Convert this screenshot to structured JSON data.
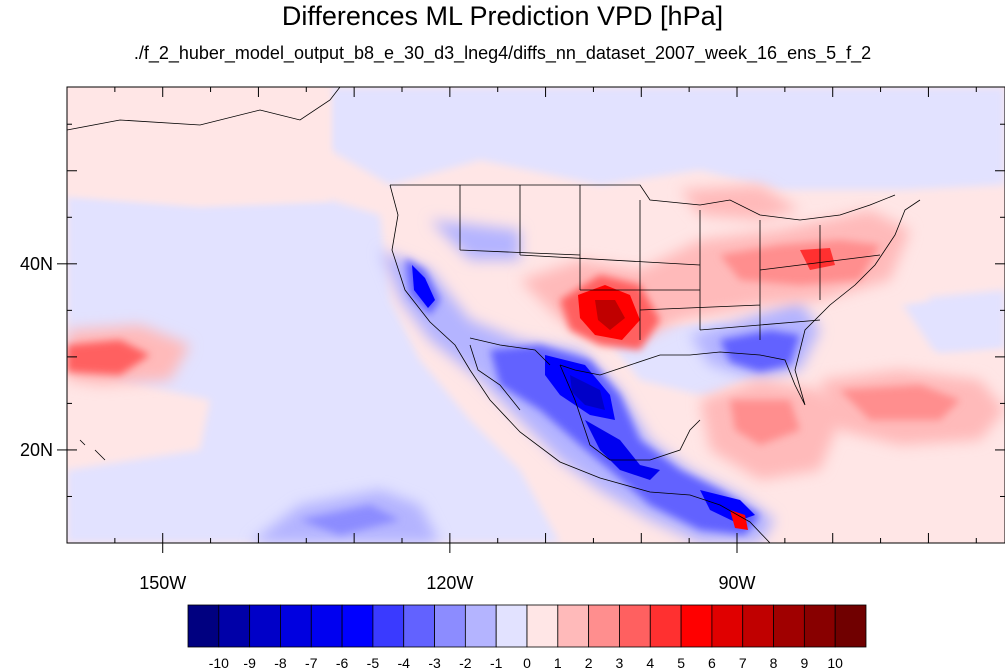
{
  "title": "Differences ML Prediction VPD [hPa]",
  "subtitle": "./f_2_huber_model_output_b8_e_30_d3_lneg4/diffs_nn_dataset_2007_week_16_ens_5_f_2",
  "map": {
    "lon_range": [
      -160,
      -62
    ],
    "lat_range": [
      10,
      59
    ],
    "projection": "cylindrical equidistant",
    "x_tick_labels": [
      {
        "lon": -150,
        "label": "150W"
      },
      {
        "lon": -120,
        "label": "120W"
      },
      {
        "lon": -90,
        "label": "90W"
      }
    ],
    "y_tick_labels": [
      {
        "lat": 40,
        "label": "40N"
      },
      {
        "lat": 20,
        "label": "20N"
      }
    ],
    "field": "VPD difference (hPa)",
    "features": [
      {
        "name": "sierra-nevada-negative",
        "value": -6,
        "lon": -119.5,
        "lat": 37
      },
      {
        "name": "mexico-plateau-negative",
        "value": -8,
        "lon": -103,
        "lat": 25
      },
      {
        "name": "southern-mexico-negative",
        "value": -7,
        "lon": -97,
        "lat": 17.5
      },
      {
        "name": "southeast-us-negative",
        "value": -4,
        "lon": -84,
        "lat": 31
      },
      {
        "name": "southern-plains-positive",
        "value": 7,
        "lon": -102,
        "lat": 35
      },
      {
        "name": "ohio-valley-positive",
        "value": 4,
        "lon": -82,
        "lat": 39
      },
      {
        "name": "caribbean-positive",
        "value": 3,
        "lon": -84,
        "lat": 22
      },
      {
        "name": "atlantic-positive",
        "value": 3,
        "lon": -65,
        "lat": 25
      },
      {
        "name": "pacific-west-positive",
        "value": 4,
        "lon": -156,
        "lat": 29
      },
      {
        "name": "central-america-positive",
        "value": 6,
        "lon": -87.5,
        "lat": 13
      }
    ]
  },
  "colorbar": {
    "levels": [
      "-10",
      "-9",
      "-8",
      "-7",
      "-6",
      "-5",
      "-4",
      "-3",
      "-2",
      "-1",
      "0",
      "1",
      "2",
      "3",
      "4",
      "5",
      "6",
      "7",
      "8",
      "9",
      "10"
    ],
    "colors": [
      "#000080",
      "#0000a8",
      "#0000c8",
      "#0000e0",
      "#0000f0",
      "#0000ff",
      "#3a3aff",
      "#6262ff",
      "#8c8cff",
      "#b4b4ff",
      "#e2e2ff",
      "#ffe6e6",
      "#ffbaba",
      "#ff8e8e",
      "#ff6060",
      "#ff3030",
      "#ff0000",
      "#e00000",
      "#c00000",
      "#a00000",
      "#880000",
      "#700000"
    ]
  }
}
